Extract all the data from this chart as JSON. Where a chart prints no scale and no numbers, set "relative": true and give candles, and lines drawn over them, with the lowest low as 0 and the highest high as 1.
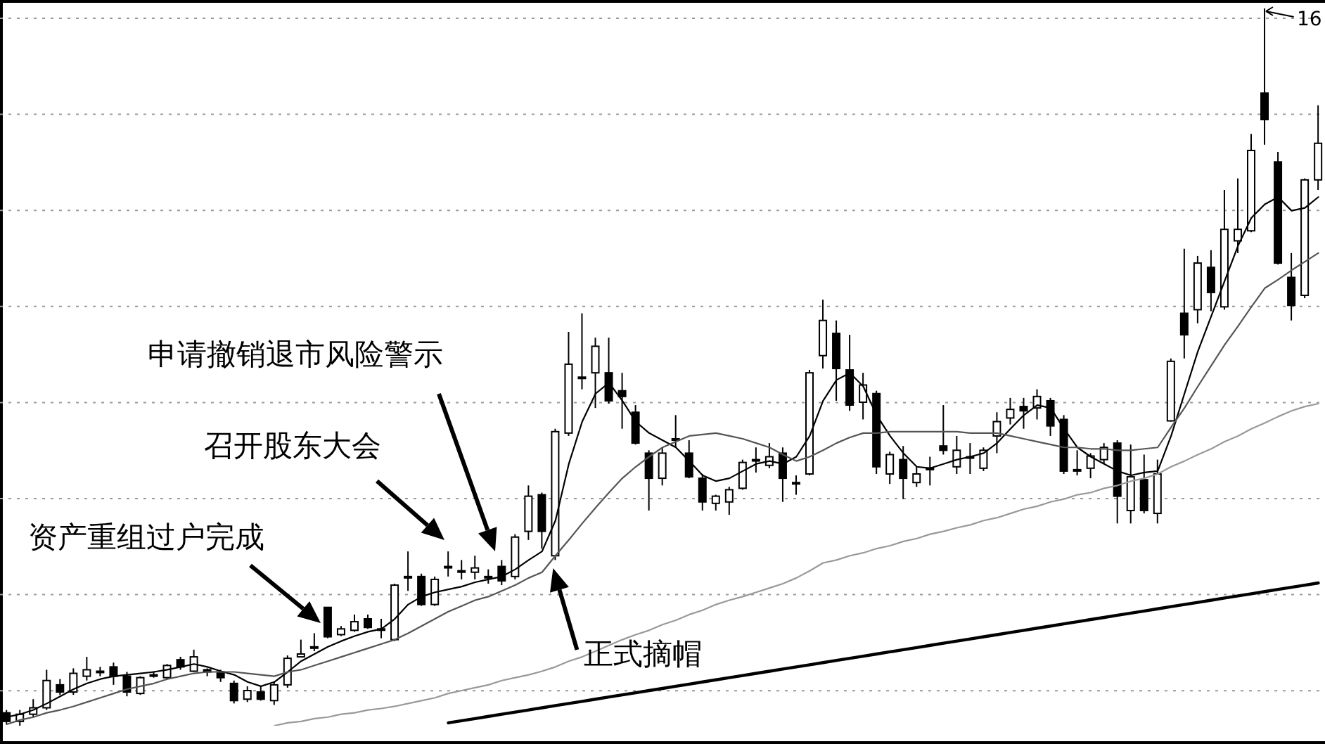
{
  "chart_data": {
    "type": "candlestick",
    "relative": true,
    "grid": true,
    "categories": [
      null,
      null,
      null,
      null,
      null,
      null,
      null,
      null,
      null,
      null,
      null,
      null,
      null,
      null,
      null,
      null,
      null,
      null,
      null,
      null,
      null,
      null,
      null,
      null,
      null,
      null,
      null,
      null,
      null,
      null,
      null,
      null,
      null,
      null,
      null,
      null,
      null,
      null,
      null,
      null,
      null,
      null,
      null,
      null,
      null,
      null,
      null,
      null,
      null,
      null,
      null,
      null,
      null,
      null,
      null,
      null,
      null,
      null,
      null,
      null,
      null,
      null,
      null,
      null,
      null,
      null,
      null,
      null,
      null,
      null,
      null,
      null,
      null,
      null,
      null,
      null,
      null,
      null,
      null,
      null,
      null,
      null,
      null,
      null,
      null,
      null,
      null,
      null,
      null,
      null,
      null,
      null,
      null,
      null,
      null,
      null,
      null,
      null,
      null
    ],
    "ohlc": [
      [
        0.018,
        0.022,
        0.002,
        0.006
      ],
      [
        0.006,
        0.022,
        0,
        0.016
      ],
      [
        0.016,
        0.037,
        0.012,
        0.025
      ],
      [
        0.025,
        0.078,
        0.022,
        0.063
      ],
      [
        0.057,
        0.065,
        0.043,
        0.047
      ],
      [
        0.047,
        0.08,
        0.043,
        0.073
      ],
      [
        0.069,
        0.096,
        0.063,
        0.078
      ],
      [
        0.076,
        0.082,
        0.069,
        0.076
      ],
      [
        0.082,
        0.088,
        0.057,
        0.069
      ],
      [
        0.069,
        0.075,
        0.041,
        0.047
      ],
      [
        0.045,
        0.069,
        0.043,
        0.067
      ],
      [
        0.071,
        0.076,
        0.067,
        0.071
      ],
      [
        0.067,
        0.086,
        0.065,
        0.084
      ],
      [
        0.092,
        0.096,
        0.078,
        0.082
      ],
      [
        0.076,
        0.106,
        0.075,
        0.096
      ],
      [
        0.078,
        0.08,
        0.069,
        0.075
      ],
      [
        0.075,
        0.078,
        0.061,
        0.067
      ],
      [
        0.059,
        0.063,
        0.031,
        0.035
      ],
      [
        0.037,
        0.055,
        0.033,
        0.049
      ],
      [
        0.047,
        0.055,
        0.035,
        0.037
      ],
      [
        0.035,
        0.061,
        0.029,
        0.057
      ],
      [
        0.057,
        0.098,
        0.053,
        0.094
      ],
      [
        0.096,
        0.12,
        0.096,
        0.1
      ],
      [
        0.11,
        0.129,
        0.104,
        0.11
      ],
      [
        0.165,
        0.165,
        0.122,
        0.124
      ],
      [
        0.127,
        0.139,
        0.125,
        0.135
      ],
      [
        0.133,
        0.155,
        0.131,
        0.145
      ],
      [
        0.149,
        0.155,
        0.135,
        0.137
      ],
      [
        0.135,
        0.149,
        0.122,
        0.135
      ],
      [
        0.12,
        0.198,
        0.118,
        0.196
      ],
      [
        0.208,
        0.243,
        0.188,
        0.208
      ],
      [
        0.208,
        0.212,
        0.167,
        0.169
      ],
      [
        0.169,
        0.208,
        0.167,
        0.204
      ],
      [
        0.222,
        0.243,
        0.208,
        0.222
      ],
      [
        0.216,
        0.231,
        0.204,
        0.216
      ],
      [
        0.214,
        0.237,
        0.204,
        0.22
      ],
      [
        0.208,
        0.218,
        0.198,
        0.208
      ],
      [
        0.222,
        0.231,
        0.196,
        0.202
      ],
      [
        0.208,
        0.267,
        0.204,
        0.263
      ],
      [
        0.271,
        0.335,
        0.259,
        0.32
      ],
      [
        0.322,
        0.325,
        0.247,
        0.271
      ],
      [
        0.237,
        0.414,
        0.231,
        0.41
      ],
      [
        0.408,
        0.549,
        0.404,
        0.504
      ],
      [
        0.486,
        0.575,
        0.469,
        0.486
      ],
      [
        0.492,
        0.541,
        0.443,
        0.529
      ],
      [
        0.492,
        0.541,
        0.449,
        0.453
      ],
      [
        0.467,
        0.492,
        0.414,
        0.459
      ],
      [
        0.437,
        0.447,
        0.392,
        0.394
      ],
      [
        0.38,
        0.384,
        0.3,
        0.345
      ],
      [
        0.345,
        0.388,
        0.335,
        0.38
      ],
      [
        0.398,
        0.433,
        0.388,
        0.4
      ],
      [
        0.38,
        0.398,
        0.345,
        0.347
      ],
      [
        0.345,
        0.351,
        0.3,
        0.312
      ],
      [
        0.31,
        0.322,
        0.3,
        0.32
      ],
      [
        0.312,
        0.333,
        0.294,
        0.329
      ],
      [
        0.331,
        0.371,
        0.329,
        0.367
      ],
      [
        0.371,
        0.388,
        0.353,
        0.371
      ],
      [
        0.363,
        0.394,
        0.359,
        0.375
      ],
      [
        0.38,
        0.388,
        0.312,
        0.345
      ],
      [
        0.339,
        0.349,
        0.322,
        0.339
      ],
      [
        0.351,
        0.496,
        0.349,
        0.492
      ],
      [
        0.516,
        0.594,
        0.498,
        0.565
      ],
      [
        0.547,
        0.565,
        0.453,
        0.498
      ],
      [
        0.496,
        0.545,
        0.439,
        0.447
      ],
      [
        0.451,
        0.492,
        0.427,
        0.475
      ],
      [
        0.463,
        0.467,
        0.351,
        0.361
      ],
      [
        0.351,
        0.382,
        0.337,
        0.378
      ],
      [
        0.371,
        0.39,
        0.316,
        0.345
      ],
      [
        0.339,
        0.361,
        0.333,
        0.351
      ],
      [
        0.359,
        0.375,
        0.335,
        0.359
      ],
      [
        0.39,
        0.447,
        0.378,
        0.384
      ],
      [
        0.361,
        0.404,
        0.351,
        0.384
      ],
      [
        0.375,
        0.394,
        0.351,
        0.375
      ],
      [
        0.359,
        0.388,
        0.355,
        0.384
      ],
      [
        0.404,
        0.437,
        0.38,
        0.424
      ],
      [
        0.429,
        0.457,
        0.42,
        0.441
      ],
      [
        0.445,
        0.457,
        0.414,
        0.439
      ],
      [
        0.443,
        0.469,
        0.427,
        0.459
      ],
      [
        0.453,
        0.457,
        0.404,
        0.418
      ],
      [
        0.427,
        0.433,
        0.351,
        0.355
      ],
      [
        0.357,
        0.384,
        0.349,
        0.357
      ],
      [
        0.359,
        0.38,
        0.345,
        0.376
      ],
      [
        0.371,
        0.394,
        0.365,
        0.388
      ],
      [
        0.394,
        0.398,
        0.282,
        0.32
      ],
      [
        0.3,
        0.392,
        0.282,
        0.347
      ],
      [
        0.343,
        0.378,
        0.296,
        0.3
      ],
      [
        0.296,
        0.371,
        0.282,
        0.351
      ],
      [
        0.425,
        0.512,
        0.424,
        0.508
      ],
      [
        0.575,
        0.665,
        0.512,
        0.545
      ],
      [
        0.58,
        0.655,
        0.561,
        0.645
      ],
      [
        0.639,
        0.663,
        0.578,
        0.604
      ],
      [
        0.584,
        0.747,
        0.58,
        0.692
      ],
      [
        0.676,
        0.763,
        0.659,
        0.692
      ],
      [
        0.69,
        0.825,
        0.688,
        0.802
      ],
      [
        0.882,
        1,
        0.81,
        0.845
      ],
      [
        0.786,
        0.8,
        0.643,
        0.645
      ],
      [
        0.625,
        0.659,
        0.565,
        0.586
      ],
      [
        0.6,
        0.763,
        0.596,
        0.761
      ],
      [
        0.761,
        0.865,
        0.747,
        0.812
      ]
    ],
    "series": [
      {
        "type": "line",
        "color": "#000000",
        "values": [
          0.012,
          0.016,
          0.022,
          0.031,
          0.041,
          0.051,
          0.059,
          0.065,
          0.069,
          0.071,
          0.073,
          0.075,
          0.078,
          0.082,
          0.086,
          0.082,
          0.076,
          0.071,
          0.061,
          0.055,
          0.061,
          0.075,
          0.09,
          0.1,
          0.11,
          0.118,
          0.125,
          0.131,
          0.135,
          0.149,
          0.169,
          0.18,
          0.186,
          0.19,
          0.194,
          0.2,
          0.204,
          0.208,
          0.218,
          0.231,
          0.243,
          0.286,
          0.365,
          0.424,
          0.463,
          0.478,
          0.453,
          0.424,
          0.408,
          0.398,
          0.388,
          0.369,
          0.349,
          0.341,
          0.345,
          0.355,
          0.365,
          0.369,
          0.365,
          0.375,
          0.404,
          0.453,
          0.482,
          0.492,
          0.473,
          0.433,
          0.404,
          0.38,
          0.361,
          0.359,
          0.365,
          0.371,
          0.375,
          0.38,
          0.394,
          0.414,
          0.433,
          0.447,
          0.443,
          0.414,
          0.388,
          0.375,
          0.365,
          0.355,
          0.349,
          0.353,
          0.355,
          0.404,
          0.463,
          0.522,
          0.571,
          0.62,
          0.669,
          0.708,
          0.727,
          0.737,
          0.718,
          0.722,
          0.737
        ]
      },
      {
        "type": "line",
        "color": "#555555",
        "values": [
          0.002,
          0.008,
          0.012,
          0.018,
          0.022,
          0.027,
          0.033,
          0.039,
          0.045,
          0.051,
          0.055,
          0.059,
          0.065,
          0.069,
          0.073,
          0.075,
          0.075,
          0.075,
          0.073,
          0.071,
          0.069,
          0.075,
          0.078,
          0.084,
          0.09,
          0.096,
          0.102,
          0.108,
          0.114,
          0.12,
          0.129,
          0.139,
          0.149,
          0.159,
          0.167,
          0.175,
          0.18,
          0.188,
          0.196,
          0.206,
          0.214,
          0.237,
          0.259,
          0.282,
          0.304,
          0.325,
          0.345,
          0.361,
          0.375,
          0.388,
          0.396,
          0.404,
          0.406,
          0.408,
          0.404,
          0.4,
          0.394,
          0.388,
          0.378,
          0.369,
          0.375,
          0.384,
          0.394,
          0.402,
          0.408,
          0.408,
          0.41,
          0.41,
          0.41,
          0.41,
          0.41,
          0.41,
          0.408,
          0.408,
          0.408,
          0.404,
          0.4,
          0.396,
          0.392,
          0.388,
          0.388,
          0.386,
          0.386,
          0.384,
          0.384,
          0.386,
          0.388,
          0.416,
          0.443,
          0.473,
          0.502,
          0.531,
          0.557,
          0.584,
          0.61,
          0.622,
          0.635,
          0.647,
          0.659
        ]
      },
      {
        "type": "line",
        "color": "#999999",
        "values": [
          null,
          null,
          null,
          null,
          null,
          null,
          null,
          null,
          null,
          null,
          null,
          null,
          null,
          null,
          null,
          null,
          null,
          null,
          null,
          null,
          0,
          0.004,
          0.006,
          0.01,
          0.012,
          0.016,
          0.018,
          0.022,
          0.024,
          0.027,
          0.031,
          0.035,
          0.039,
          0.045,
          0.049,
          0.053,
          0.057,
          0.063,
          0.067,
          0.071,
          0.076,
          0.082,
          0.09,
          0.096,
          0.104,
          0.112,
          0.12,
          0.127,
          0.133,
          0.141,
          0.147,
          0.155,
          0.161,
          0.169,
          0.175,
          0.18,
          0.186,
          0.192,
          0.198,
          0.206,
          0.216,
          0.227,
          0.231,
          0.237,
          0.241,
          0.247,
          0.251,
          0.257,
          0.261,
          0.267,
          0.271,
          0.276,
          0.28,
          0.286,
          0.29,
          0.296,
          0.302,
          0.306,
          0.312,
          0.316,
          0.322,
          0.325,
          0.331,
          0.335,
          0.341,
          0.345,
          0.351,
          0.361,
          0.369,
          0.378,
          0.386,
          0.396,
          0.404,
          0.414,
          0.422,
          0.431,
          0.439,
          0.445,
          0.449
        ]
      },
      {
        "type": "line",
        "color": "#000000",
        "values": [
          null,
          null,
          null,
          null,
          null,
          null,
          null,
          null,
          null,
          null,
          null,
          null,
          null,
          null,
          null,
          null,
          null,
          null,
          null,
          null,
          null,
          null,
          null,
          null,
          null,
          null,
          null,
          null,
          null,
          null,
          null,
          null,
          null,
          0.004,
          0.007,
          0.01,
          0.013,
          0.016,
          0.019,
          0.022,
          0.025,
          0.028,
          0.031,
          0.034,
          0.037,
          0.04,
          0.043,
          0.046,
          0.049,
          0.052,
          0.055,
          0.058,
          0.061,
          0.064,
          0.067,
          0.07,
          0.073,
          0.076,
          0.079,
          0.082,
          0.085,
          0.088,
          0.091,
          0.094,
          0.097,
          0.1,
          0.103,
          0.106,
          0.109,
          0.112,
          0.115,
          0.118,
          0.121,
          0.124,
          0.127,
          0.13,
          0.133,
          0.136,
          0.139,
          0.142,
          0.145,
          0.148,
          0.151,
          0.154,
          0.157,
          0.16,
          0.163,
          0.166,
          0.169,
          0.172,
          0.175,
          0.178,
          0.181,
          0.184,
          0.187,
          0.19,
          0.193,
          0.196,
          0.199
        ]
      }
    ],
    "annotations": [
      "申请撤销退市风险警示",
      "召开股东大会",
      "资产重组过户完成",
      "正式摘帽",
      "16"
    ]
  }
}
